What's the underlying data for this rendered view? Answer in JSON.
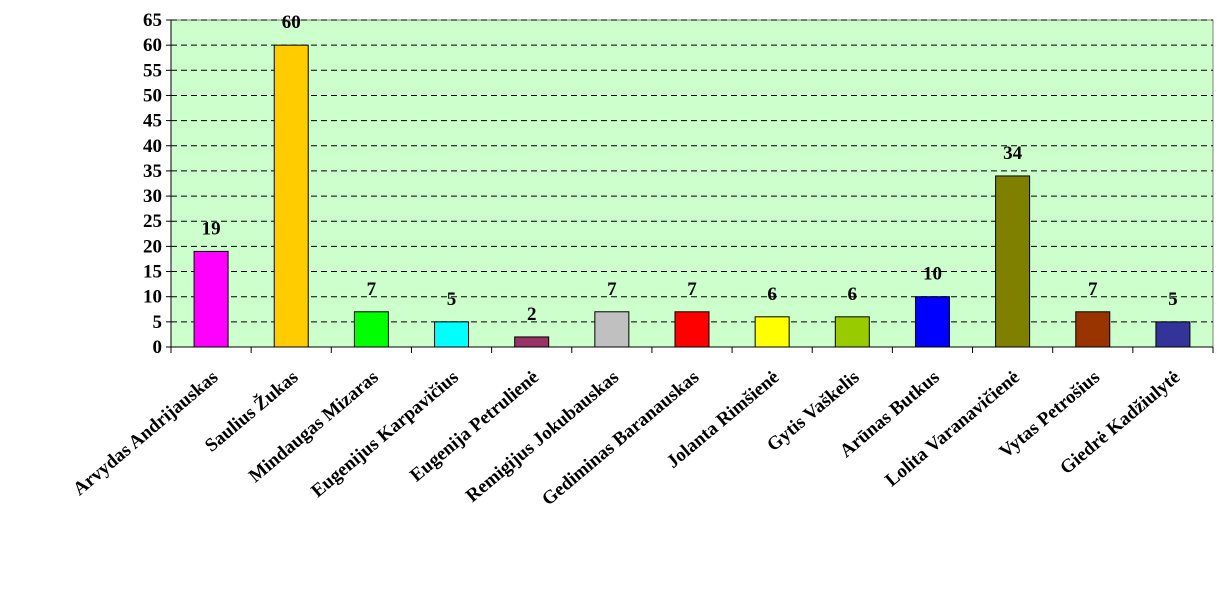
{
  "chart_data": {
    "type": "bar",
    "title": "",
    "xlabel": "",
    "ylabel": "",
    "ylim": [
      0,
      65
    ],
    "yticks": [
      0,
      5,
      10,
      15,
      20,
      25,
      30,
      35,
      40,
      45,
      50,
      55,
      60,
      65
    ],
    "grid": "horizontal dashed",
    "legend": "none",
    "plot_background": "#CCFFCC",
    "categories": [
      "Arvydas Andrijauskas",
      "Saulius Žukas",
      "Mindaugas Mizaras",
      "Eugenijus Karpavičius",
      "Eugenija Petrulienė",
      "Remigijus Jokubauskas",
      "Gediminas Baranauskas",
      "Jolanta Rimšienė",
      "Gytis Vaškelis",
      "Arūnas Butkus",
      "Lolita Varanavičienė",
      "Vytas Petrošius",
      "Giedrė Kadžiulytė"
    ],
    "values": [
      19,
      60,
      7,
      5,
      2,
      7,
      7,
      6,
      6,
      10,
      34,
      7,
      5
    ],
    "data_labels": [
      "19",
      "60",
      "7",
      "5",
      "2",
      "7",
      "7",
      "6",
      "6",
      "10",
      "34",
      "7",
      "5"
    ],
    "colors": [
      "#FF00FF",
      "#FFCC00",
      "#00FF00",
      "#00FFFF",
      "#993366",
      "#C0C0C0",
      "#FF0000",
      "#FFFF00",
      "#99CC00",
      "#0000FF",
      "#808000",
      "#993300",
      "#333399"
    ]
  }
}
